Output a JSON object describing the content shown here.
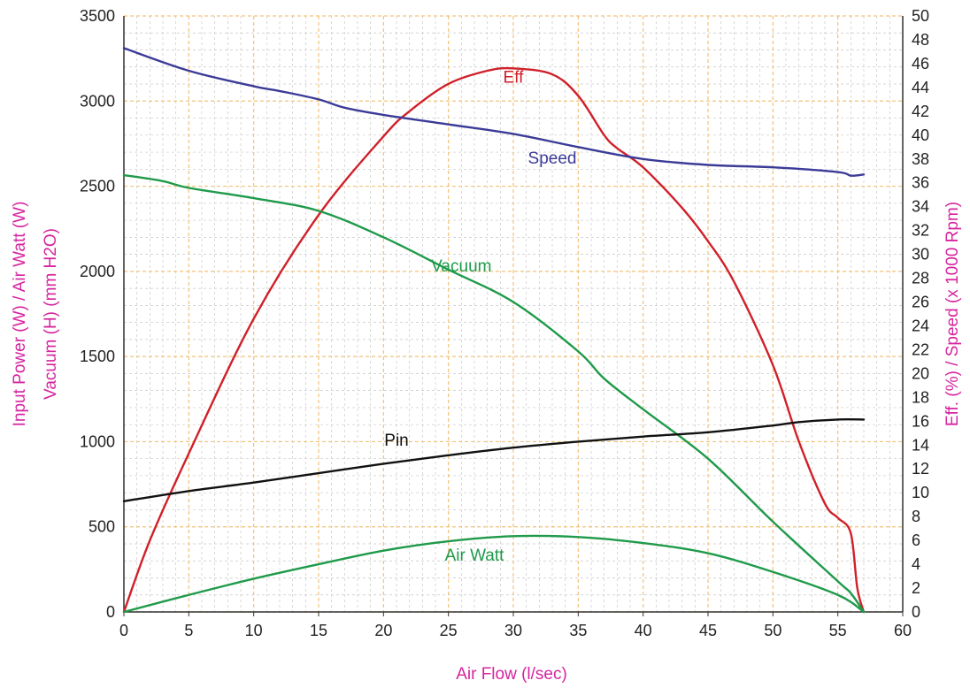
{
  "chart_data": {
    "type": "line",
    "xlabel": "Air Flow (l/sec)",
    "ylabel_left_line1": "Input Power (W) / Air Watt (W)",
    "ylabel_left_line2": "Vacuum (H) (mm H2O)",
    "ylabel_right": "Eff. (%) / Speed (x 1000 Rpm)",
    "xlim": [
      0,
      60
    ],
    "ylim_left": [
      0,
      3500
    ],
    "ylim_right": [
      0,
      50
    ],
    "x_ticks": [
      "0",
      "5",
      "10",
      "15",
      "20",
      "25",
      "30",
      "35",
      "40",
      "45",
      "50",
      "55",
      "60"
    ],
    "y_left_ticks": [
      "0",
      "500",
      "1000",
      "1500",
      "2000",
      "2500",
      "3000",
      "3500"
    ],
    "y_right_ticks": [
      "0",
      "2",
      "4",
      "6",
      "8",
      "10",
      "12",
      "14",
      "16",
      "18",
      "20",
      "22",
      "24",
      "26",
      "28",
      "30",
      "32",
      "34",
      "36",
      "38",
      "40",
      "42",
      "44",
      "46",
      "48",
      "50"
    ],
    "grid": true,
    "colors": {
      "grid": "#f2c27a",
      "minor_grid": "#c8c8c8",
      "axis_title": "#d6249f",
      "eff": "#d0202a",
      "speed": "#3b3b98",
      "vacuum": "#1f9a4a",
      "air_watt": "#1f9a4a",
      "pin": "#111111"
    },
    "series": [
      {
        "name": "Eff",
        "key": "eff",
        "axis": "right",
        "points": [
          [
            0,
            0
          ],
          [
            2,
            6
          ],
          [
            5,
            13.3
          ],
          [
            10,
            24.6
          ],
          [
            15,
            33.3
          ],
          [
            20,
            39.9
          ],
          [
            22,
            42
          ],
          [
            25,
            44.3
          ],
          [
            28,
            45.4
          ],
          [
            30,
            45.6
          ],
          [
            33,
            45.1
          ],
          [
            35,
            43.3
          ],
          [
            37,
            40
          ],
          [
            38,
            38.9
          ],
          [
            40,
            37.3
          ],
          [
            43,
            33.9
          ],
          [
            45,
            31.1
          ],
          [
            47,
            27.7
          ],
          [
            50,
            20.7
          ],
          [
            52,
            14.3
          ],
          [
            54,
            9.1
          ],
          [
            55,
            7.9
          ],
          [
            56,
            6.6
          ],
          [
            56.5,
            2
          ],
          [
            57,
            0
          ]
        ]
      },
      {
        "name": "Speed",
        "key": "speed",
        "axis": "right",
        "points": [
          [
            0,
            47.3
          ],
          [
            5,
            45.4
          ],
          [
            10,
            44.1
          ],
          [
            12,
            43.7
          ],
          [
            15,
            43
          ],
          [
            17,
            42.3
          ],
          [
            20,
            41.7
          ],
          [
            25,
            40.9
          ],
          [
            30,
            40.1
          ],
          [
            35,
            39
          ],
          [
            40,
            38
          ],
          [
            45,
            37.5
          ],
          [
            50,
            37.3
          ],
          [
            55,
            36.9
          ],
          [
            56,
            36.6
          ],
          [
            57,
            36.7
          ]
        ]
      },
      {
        "name": "Vacuum",
        "key": "vacuum",
        "axis": "left",
        "points": [
          [
            0,
            2565
          ],
          [
            3,
            2530
          ],
          [
            5,
            2490
          ],
          [
            10,
            2430
          ],
          [
            15,
            2355
          ],
          [
            20,
            2200
          ],
          [
            25,
            2010
          ],
          [
            30,
            1820
          ],
          [
            35,
            1530
          ],
          [
            37,
            1370
          ],
          [
            40,
            1190
          ],
          [
            45,
            900
          ],
          [
            50,
            530
          ],
          [
            55,
            180
          ],
          [
            56,
            110
          ],
          [
            57,
            0
          ]
        ]
      },
      {
        "name": "Air Watt",
        "key": "air_watt",
        "axis": "left",
        "points": [
          [
            0,
            0
          ],
          [
            5,
            100
          ],
          [
            10,
            195
          ],
          [
            15,
            280
          ],
          [
            20,
            360
          ],
          [
            25,
            415
          ],
          [
            30,
            445
          ],
          [
            35,
            440
          ],
          [
            40,
            405
          ],
          [
            45,
            345
          ],
          [
            50,
            235
          ],
          [
            55,
            100
          ],
          [
            57,
            0
          ]
        ]
      },
      {
        "name": "Pin",
        "key": "pin",
        "axis": "left",
        "points": [
          [
            0,
            650
          ],
          [
            5,
            710
          ],
          [
            10,
            760
          ],
          [
            15,
            815
          ],
          [
            20,
            870
          ],
          [
            25,
            920
          ],
          [
            30,
            965
          ],
          [
            35,
            1000
          ],
          [
            40,
            1030
          ],
          [
            45,
            1055
          ],
          [
            50,
            1095
          ],
          [
            52,
            1115
          ],
          [
            55,
            1130
          ],
          [
            57,
            1130
          ]
        ]
      }
    ],
    "annotations": [
      {
        "text": "Eff",
        "key": "eff",
        "axis": "right",
        "at": [
          30,
          44.4
        ]
      },
      {
        "text": "Speed",
        "key": "speed",
        "axis": "right",
        "at": [
          33,
          37.6
        ]
      },
      {
        "text": "Vacuum",
        "key": "vacuum",
        "axis": "left",
        "at": [
          26,
          2000
        ]
      },
      {
        "text": "Pin",
        "key": "pin",
        "axis": "left",
        "at": [
          21,
          975
        ]
      },
      {
        "text": "Air Watt",
        "key": "air_watt",
        "axis": "left",
        "at": [
          27,
          300
        ]
      }
    ]
  }
}
